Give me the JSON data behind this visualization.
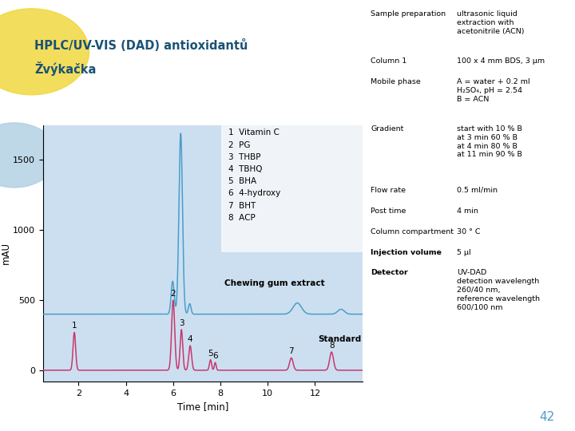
{
  "title_line1": "HPLC/UV-VIS (DAD) antioxidantů",
  "title_line2": "Žvýkačka",
  "title_color": "#1a5276",
  "slide_number": "42",
  "background_color": "#ffffff",
  "plot_bg_color": "#ccdff0",
  "xlabel": "Time [min]",
  "ylabel": "mAU",
  "xlim": [
    0.5,
    14.0
  ],
  "ylim": [
    -80,
    1750
  ],
  "yticks": [
    0,
    500,
    1000,
    1500
  ],
  "xticks": [
    2,
    4,
    6,
    8,
    10,
    12
  ],
  "compound_labels": [
    "1  Vitamin C",
    "2  PG",
    "3  THBP",
    "4  TBHQ",
    "5  BHA",
    "6  4-hydroxy",
    "7  BHT",
    "8  ACP"
  ],
  "chewing_label": "Chewing gum extract",
  "standard_label": "Standard",
  "pink_color": "#c8386e",
  "blue_color": "#4a9dc9",
  "info_labels": [
    [
      "Sample preparation",
      "ultrasonic liquid\nextraction with\nacetonitrile (ACN)"
    ],
    [
      "Column 1",
      "100 x 4 mm BDS, 3 μm"
    ],
    [
      "Mobile phase",
      "A = water + 0.2 ml\nH₂SO₄, pH = 2.54\nB = ACN"
    ],
    [
      "Gradient",
      "start with 10 % B\nat 3 min 60 % B\nat 4 min 80 % B\nat 11 min 90 % B"
    ],
    [
      "Flow rate",
      "0.5 ml/min"
    ],
    [
      "Post time",
      "4 min"
    ],
    [
      "Column compartment",
      "30 ° C"
    ],
    [
      "Injection volume",
      "5 μl"
    ],
    [
      "Detector",
      "UV-DAD\ndetection wavelength\n260/40 nm,\nreference wavelength\n600/100 nm"
    ]
  ],
  "bold_info_keys": [
    "Injection volume",
    "Detector"
  ]
}
